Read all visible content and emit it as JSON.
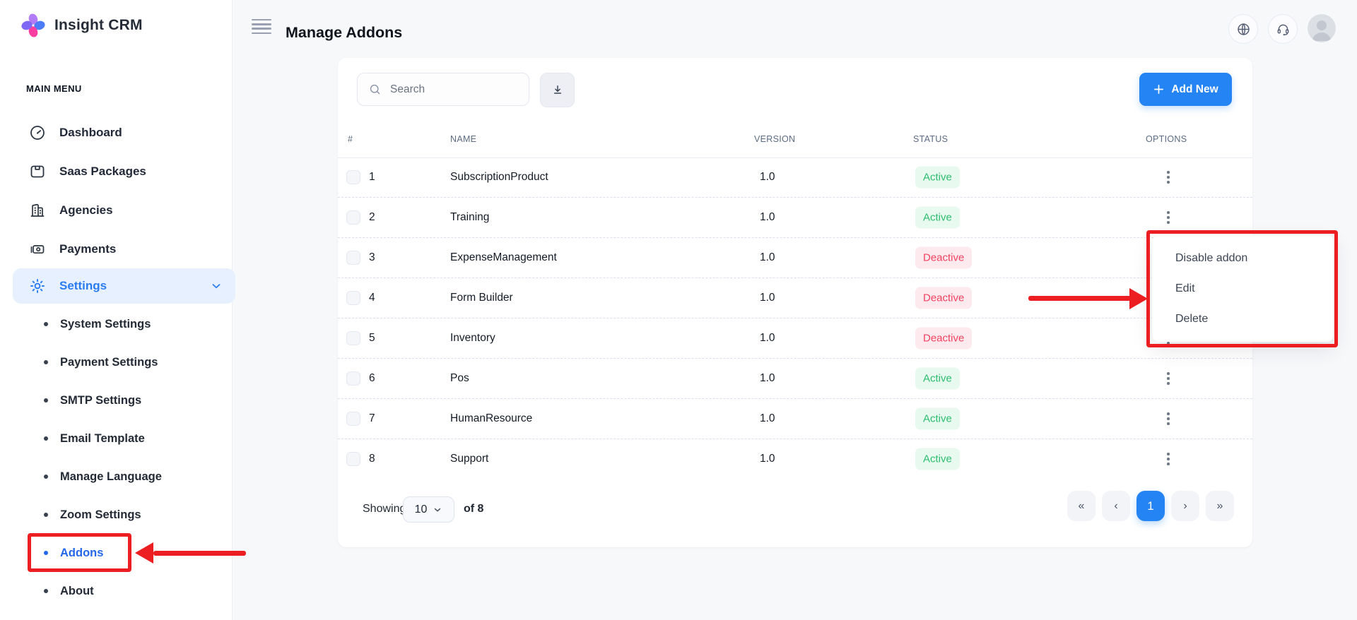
{
  "brand": {
    "name": "Insight CRM",
    "logo_icon": "flower-logo-icon"
  },
  "sidebar": {
    "section_label": "MAIN MENU",
    "items": [
      {
        "label": "Dashboard",
        "icon": "dashboard-icon",
        "active": false
      },
      {
        "label": "Saas Packages",
        "icon": "package-icon",
        "active": false
      },
      {
        "label": "Agencies",
        "icon": "building-icon",
        "active": false
      },
      {
        "label": "Payments",
        "icon": "payments-icon",
        "active": false
      },
      {
        "label": "Settings",
        "icon": "gear-icon",
        "active": true,
        "expanded": true,
        "chevron_icon": "chevron-down-icon"
      }
    ],
    "submenu": [
      {
        "label": "System Settings",
        "active": false
      },
      {
        "label": "Payment Settings",
        "active": false
      },
      {
        "label": "SMTP Settings",
        "active": false
      },
      {
        "label": "Email Template",
        "active": false
      },
      {
        "label": "Manage Language",
        "active": false
      },
      {
        "label": "Zoom Settings",
        "active": false
      },
      {
        "label": "Addons",
        "active": true,
        "annotated": true
      },
      {
        "label": "About",
        "active": false
      }
    ]
  },
  "header": {
    "title": "Manage Addons",
    "menu_icon": "hamburger-icon",
    "action_icons": [
      "globe-icon",
      "headset-icon"
    ],
    "avatar_icon": "user-avatar"
  },
  "toolbar": {
    "search_placeholder": "Search",
    "search_icon": "search-icon",
    "export_icon": "download-icon",
    "add_new_label": "Add New",
    "add_new_icon": "plus-icon"
  },
  "table": {
    "columns": [
      "#",
      "NAME",
      "VERSION",
      "STATUS",
      "OPTIONS"
    ],
    "rows": [
      {
        "num": "1",
        "name": "SubscriptionProduct",
        "version": "1.0",
        "status": "Active"
      },
      {
        "num": "2",
        "name": "Training",
        "version": "1.0",
        "status": "Active"
      },
      {
        "num": "3",
        "name": "ExpenseManagement",
        "version": "1.0",
        "status": "Deactive"
      },
      {
        "num": "4",
        "name": "Form Builder",
        "version": "1.0",
        "status": "Deactive"
      },
      {
        "num": "5",
        "name": "Inventory",
        "version": "1.0",
        "status": "Deactive"
      },
      {
        "num": "6",
        "name": "Pos",
        "version": "1.0",
        "status": "Active"
      },
      {
        "num": "7",
        "name": "HumanResource",
        "version": "1.0",
        "status": "Active"
      },
      {
        "num": "8",
        "name": "Support",
        "version": "1.0",
        "status": "Active"
      }
    ],
    "options_icon": "kebab-menu-icon"
  },
  "dropdown": {
    "items": [
      "Disable addon",
      "Edit",
      "Delete"
    ]
  },
  "footer": {
    "showing_label": "Showing:",
    "page_size": "10",
    "of_label": "of 8"
  },
  "pagination": {
    "buttons": [
      {
        "label": "«",
        "name": "first-page-button",
        "active": false
      },
      {
        "label": "‹",
        "name": "prev-page-button",
        "active": false
      },
      {
        "label": "1",
        "name": "page-1-button",
        "active": true
      },
      {
        "label": "›",
        "name": "next-page-button",
        "active": false
      },
      {
        "label": "»",
        "name": "last-page-button",
        "active": false
      }
    ]
  },
  "colors": {
    "accent": "#2484f4",
    "sidebar_active": "#2b7cf3",
    "annotation_red": "#ec1e22",
    "active_badge_bg": "#e8faf0",
    "active_badge_text": "#2dbd6e",
    "deactive_badge_bg": "#fdeaef",
    "deactive_badge_text": "#f4415f"
  }
}
